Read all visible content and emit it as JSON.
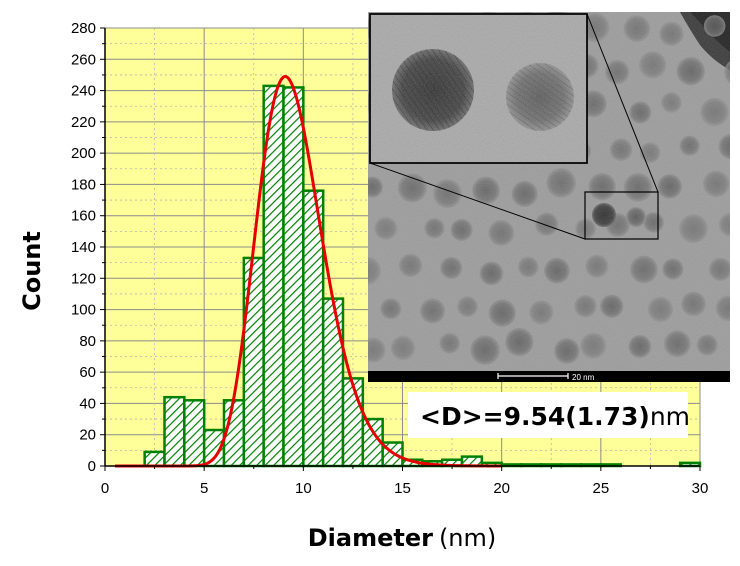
{
  "chart_data": {
    "type": "bar",
    "x_label": "Diameter",
    "x_unit": "(nm)",
    "y_label": "Count",
    "xlim": [
      0,
      30
    ],
    "ylim": [
      0,
      280
    ],
    "x_ticks": [
      0,
      5,
      10,
      15,
      20,
      25,
      30
    ],
    "y_ticks": [
      0,
      20,
      40,
      60,
      80,
      100,
      120,
      140,
      160,
      180,
      200,
      220,
      240,
      260,
      280
    ],
    "grid": true,
    "background_color": "#ffff99",
    "bar_color": "#008000",
    "fit_color": "#e60000",
    "bin_width": 1,
    "bins": [
      {
        "x": 2.5,
        "count": 9
      },
      {
        "x": 3.5,
        "count": 44
      },
      {
        "x": 4.5,
        "count": 42
      },
      {
        "x": 5.5,
        "count": 23
      },
      {
        "x": 6.5,
        "count": 42
      },
      {
        "x": 7.5,
        "count": 133
      },
      {
        "x": 8.5,
        "count": 243
      },
      {
        "x": 9.5,
        "count": 242
      },
      {
        "x": 10.5,
        "count": 176
      },
      {
        "x": 11.5,
        "count": 107
      },
      {
        "x": 12.5,
        "count": 56
      },
      {
        "x": 13.5,
        "count": 30
      },
      {
        "x": 14.5,
        "count": 15
      },
      {
        "x": 15.5,
        "count": 4
      },
      {
        "x": 16.5,
        "count": 3
      },
      {
        "x": 17.5,
        "count": 4
      },
      {
        "x": 18.5,
        "count": 6
      },
      {
        "x": 19.5,
        "count": 2
      },
      {
        "x": 20.5,
        "count": 1
      },
      {
        "x": 21.5,
        "count": 1
      },
      {
        "x": 22.5,
        "count": 1
      },
      {
        "x": 23.5,
        "count": 1
      },
      {
        "x": 24.5,
        "count": 1
      },
      {
        "x": 25.5,
        "count": 1
      },
      {
        "x": 29.5,
        "count": 2
      }
    ],
    "fit": {
      "type": "lognormal",
      "mean": 9.54,
      "std": 1.73,
      "peak": 249
    },
    "annotation": {
      "prefix": "<D>=",
      "mean": "9.54",
      "std": "(1.73)",
      "unit": "nm"
    },
    "inset": {
      "scale_label": "20 nm"
    }
  }
}
